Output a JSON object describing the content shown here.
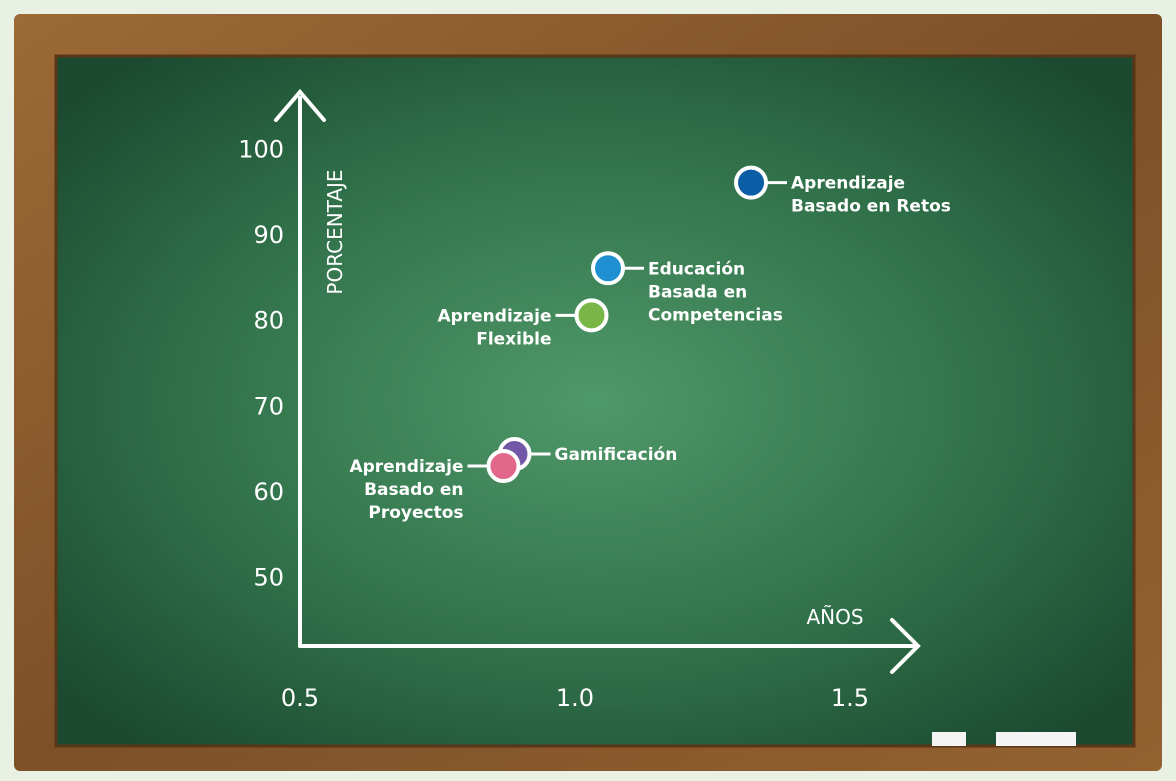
{
  "chart_data": {
    "type": "scatter",
    "x_label": "AÑOS",
    "y_label": "PORCENTAJE",
    "xlim": [
      0.5,
      1.6
    ],
    "ylim": [
      42,
      106
    ],
    "xticks": [
      0.5,
      {
        "value": 1,
        "label": "1.0"
      },
      1.5
    ],
    "yticks": [
      50,
      60,
      70,
      80,
      90,
      100
    ],
    "series": [
      {
        "name": "Aprendizaje\nBasado en Retos",
        "color": "#0b5ea6",
        "x": [
          1.32
        ],
        "values": [
          96
        ]
      },
      {
        "name": "Educación\nBasada en\nCompetencias",
        "color": "#1e8fd0",
        "x": [
          1.06
        ],
        "values": [
          86
        ]
      },
      {
        "name": "Aprendizaje\nFlexible",
        "color": "#79b547",
        "x": [
          1.03
        ],
        "values": [
          80.5
        ]
      },
      {
        "name": "Gamificación",
        "color": "#7257a6",
        "x": [
          0.89
        ],
        "values": [
          64.3
        ]
      },
      {
        "name": "Aprendizaje\nBasado en\nProyectos",
        "color": "#e2678a",
        "x": [
          0.87
        ],
        "values": [
          62.9
        ]
      }
    ]
  }
}
